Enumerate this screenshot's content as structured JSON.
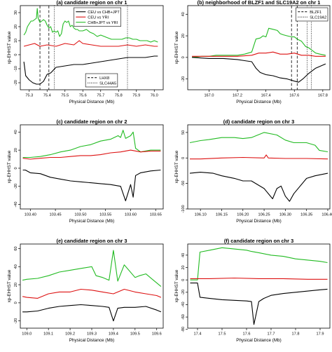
{
  "chart_data": [
    {
      "type": "line",
      "title": "(a) candidate region on chr 1",
      "xlabel": "Physical Distance (Mb)",
      "ylabel": "xp-EHHST value",
      "xlim": [
        75.25,
        76.05
      ],
      "ylim": [
        -25,
        35
      ],
      "xticks": [
        "75.3",
        "75.4",
        "75.5",
        "75.6",
        "75.7",
        "75.8",
        "75.9",
        "76.0"
      ],
      "yticks": [
        "-20",
        "-10",
        "0",
        "10",
        "20",
        "30"
      ],
      "legends": [
        {
          "position": "top-center",
          "entries": [
            {
              "label": "CEU vs CHB+JPT",
              "color": "#000000",
              "dash": "solid"
            },
            {
              "label": "CEU vs YRI",
              "color": "#dd1111",
              "dash": "solid"
            },
            {
              "label": "CHB+JPT vs YRI",
              "color": "#22bb22",
              "dash": "solid"
            }
          ]
        },
        {
          "position": "bottom-center",
          "entries": [
            {
              "label": "LHX8",
              "color": "#000000",
              "dash": "dashed"
            },
            {
              "label": "SLC44A5",
              "color": "#000000",
              "dash": "dotted"
            }
          ]
        }
      ],
      "vlines": [
        {
          "x": 75.36,
          "style": "dashed"
        },
        {
          "x": 75.41,
          "style": "dashed"
        },
        {
          "x": 75.44,
          "style": "dotted"
        },
        {
          "x": 75.85,
          "style": "dotted"
        }
      ],
      "series": [
        {
          "name": "CHB+JPT vs YRI",
          "color": "#22bb22",
          "x": [
            75.27,
            75.28,
            75.29,
            75.3,
            75.31,
            75.32,
            75.33,
            75.34,
            75.345,
            75.35,
            75.36,
            75.37,
            75.38,
            75.39,
            75.4,
            75.41,
            75.42,
            75.43,
            75.44,
            75.45,
            75.46,
            75.47,
            75.48,
            75.49,
            75.5,
            75.51,
            75.52,
            75.53,
            75.54,
            75.55,
            75.56,
            75.57,
            75.58,
            75.6,
            75.62,
            75.64,
            75.66,
            75.68,
            75.7,
            75.72,
            75.74,
            75.76,
            75.78,
            75.8,
            75.82,
            75.84,
            75.86,
            75.88,
            75.9,
            75.92,
            75.94,
            75.96,
            75.98,
            76.0,
            76.02
          ],
          "y": [
            14,
            16,
            20,
            22,
            24,
            24,
            25,
            26,
            33,
            26,
            23,
            24,
            25,
            24,
            21,
            19,
            20,
            16,
            17,
            16,
            17,
            13,
            15,
            22,
            24,
            23,
            24,
            20,
            21,
            19,
            18,
            18,
            17,
            17,
            18,
            16,
            15,
            13,
            14,
            13,
            12,
            11,
            11,
            11,
            11,
            12,
            12,
            11,
            11,
            10,
            10,
            10,
            9,
            10,
            9
          ]
        },
        {
          "name": "CEU vs YRI",
          "color": "#dd1111",
          "x": [
            75.27,
            75.3,
            75.33,
            75.36,
            75.4,
            75.45,
            75.5,
            75.55,
            75.58,
            75.6,
            75.65,
            75.7,
            75.75,
            75.8,
            75.85,
            75.9,
            75.95,
            76.0,
            76.02
          ],
          "y": [
            6,
            7,
            8,
            6,
            7,
            6,
            8,
            7,
            10,
            8,
            7,
            6,
            6,
            6,
            7,
            6,
            7,
            6,
            6
          ]
        },
        {
          "name": "CEU vs CHB+JPT",
          "color": "#000000",
          "x": [
            75.27,
            75.28,
            75.3,
            75.32,
            75.34,
            75.36,
            75.38,
            75.4,
            75.42,
            75.45,
            75.5,
            75.55,
            75.6,
            75.65,
            75.7,
            75.75,
            75.8,
            75.85,
            75.9,
            75.95,
            76.0,
            76.02
          ],
          "y": [
            -5,
            -15,
            -18,
            -20,
            -21,
            -21,
            -19,
            -14,
            -13,
            -9,
            -8,
            -7,
            -7,
            -6,
            -5,
            -4,
            -3,
            -2,
            -2,
            -2,
            -1,
            -1
          ]
        }
      ]
    },
    {
      "type": "line",
      "title": "(b) neighborhood of BLZF1 and SLC19A2 on chr 1",
      "xlabel": "Physical Distance (Mb)",
      "ylabel": "xp-EHHST value",
      "xlim": [
        166.85,
        167.85
      ],
      "ylim": [
        -30,
        48
      ],
      "xticks": [
        "167.0",
        "167.2",
        "167.4",
        "167.6",
        "167.8"
      ],
      "yticks": [
        "-20",
        "0",
        "20",
        "40"
      ],
      "legends": [
        {
          "position": "top-right",
          "entries": [
            {
              "label": "BLZF1",
              "color": "#000000",
              "dash": "dashed"
            },
            {
              "label": "SLC19A2",
              "color": "#000000",
              "dash": "dotted"
            }
          ]
        }
      ],
      "vlines": [
        {
          "x": 167.58,
          "style": "dashed"
        },
        {
          "x": 167.62,
          "style": "dashed"
        },
        {
          "x": 167.69,
          "style": "dotted"
        },
        {
          "x": 167.72,
          "style": "dotted"
        }
      ],
      "series": [
        {
          "name": "CHB+JPT vs YRI",
          "color": "#22bb22",
          "x": [
            166.88,
            166.95,
            167.0,
            167.05,
            167.1,
            167.15,
            167.2,
            167.25,
            167.3,
            167.33,
            167.36,
            167.38,
            167.4,
            167.42,
            167.45,
            167.48,
            167.5,
            167.52,
            167.55,
            167.58,
            167.6,
            167.62,
            167.65,
            167.68,
            167.7,
            167.72,
            167.75,
            167.78,
            167.82
          ],
          "y": [
            0,
            1,
            1,
            2,
            2,
            2,
            2,
            3,
            5,
            17,
            18,
            20,
            19,
            27,
            26,
            25,
            22,
            21,
            20,
            19,
            19,
            17,
            15,
            10,
            9,
            7,
            4,
            3,
            2
          ]
        },
        {
          "name": "CEU vs YRI",
          "color": "#dd1111",
          "x": [
            166.88,
            167.0,
            167.1,
            167.2,
            167.3,
            167.35,
            167.4,
            167.45,
            167.5,
            167.55,
            167.6,
            167.65,
            167.7,
            167.75,
            167.82
          ],
          "y": [
            1,
            1,
            1,
            1,
            2,
            4,
            4,
            5,
            3,
            3,
            4,
            2,
            2,
            1,
            1
          ]
        },
        {
          "name": "CEU vs CHB+JPT",
          "color": "#000000",
          "x": [
            166.88,
            167.0,
            167.1,
            167.2,
            167.25,
            167.3,
            167.33,
            167.36,
            167.4,
            167.45,
            167.5,
            167.55,
            167.6,
            167.63,
            167.66,
            167.7,
            167.75,
            167.82
          ],
          "y": [
            0,
            -1,
            -1,
            -2,
            -3,
            -4,
            -10,
            -14,
            -16,
            -17,
            -19,
            -20,
            -22,
            -23,
            -20,
            -15,
            -10,
            -6
          ]
        }
      ]
    },
    {
      "type": "line",
      "title": "(c) candidate region on chr 2",
      "xlabel": "Physical Distance (Mb)",
      "ylabel": "xp-EHHST value",
      "xlim": [
        103.38,
        103.665
      ],
      "ylim": [
        -45,
        48
      ],
      "xticks": [
        "103.40",
        "103.45",
        "103.50",
        "103.55",
        "103.60",
        "103.65"
      ],
      "yticks": [
        "-40",
        "-20",
        "0",
        "20",
        "40"
      ],
      "series": [
        {
          "name": "CHB+JPT vs YRI",
          "color": "#22bb22",
          "x": [
            103.385,
            103.4,
            103.42,
            103.44,
            103.46,
            103.48,
            103.5,
            103.52,
            103.54,
            103.56,
            103.575,
            103.58,
            103.585,
            103.59,
            103.6,
            103.605,
            103.61,
            103.62,
            103.64,
            103.66
          ],
          "y": [
            12,
            12,
            13,
            15,
            18,
            20,
            24,
            26,
            30,
            32,
            36,
            34,
            42,
            33,
            36,
            40,
            22,
            18,
            20,
            20
          ]
        },
        {
          "name": "CEU vs YRI",
          "color": "#dd1111",
          "x": [
            103.385,
            103.4,
            103.42,
            103.44,
            103.46,
            103.48,
            103.5,
            103.52,
            103.54,
            103.56,
            103.58,
            103.6,
            103.62,
            103.64,
            103.66
          ],
          "y": [
            11,
            10,
            11,
            12,
            12,
            13,
            14,
            14,
            15,
            17,
            18,
            20,
            18,
            19,
            19
          ]
        },
        {
          "name": "CEU vs CHB+JPT",
          "color": "#000000",
          "x": [
            103.385,
            103.39,
            103.4,
            103.42,
            103.44,
            103.46,
            103.48,
            103.5,
            103.52,
            103.54,
            103.56,
            103.58,
            103.59,
            103.6,
            103.605,
            103.61,
            103.62,
            103.64,
            103.66
          ],
          "y": [
            -2,
            -2,
            -5,
            -6,
            -10,
            -12,
            -14,
            -15,
            -16,
            -17,
            -18,
            -20,
            -36,
            -18,
            -32,
            -8,
            -5,
            -3,
            -2
          ]
        }
      ]
    },
    {
      "type": "line",
      "title": "(d) candidate region on chr 3",
      "xlabel": "Physical Distance (Mb)",
      "ylabel": "xp-EHHST value",
      "xlim": [
        106.07,
        106.405
      ],
      "ylim": [
        -100,
        65
      ],
      "xticks": [
        "106.10",
        "106.15",
        "106.20",
        "106.25",
        "106.30",
        "106.35",
        "106.40"
      ],
      "yticks": [
        "-100",
        "-50",
        "0",
        "50"
      ],
      "series": [
        {
          "name": "CHB+JPT vs YRI",
          "color": "#22bb22",
          "x": [
            106.075,
            106.1,
            106.12,
            106.15,
            106.18,
            106.2,
            106.22,
            106.25,
            106.28,
            106.3,
            106.32,
            106.35,
            106.37,
            106.38,
            106.4
          ],
          "y": [
            30,
            34,
            36,
            40,
            40,
            38,
            40,
            50,
            45,
            35,
            30,
            30,
            25,
            15,
            12
          ]
        },
        {
          "name": "CEU vs YRI",
          "color": "#dd1111",
          "x": [
            106.075,
            106.1,
            106.15,
            106.2,
            106.25,
            106.255,
            106.26,
            106.3,
            106.35,
            106.4
          ],
          "y": [
            -2,
            -2,
            0,
            1,
            0,
            6,
            0,
            -1,
            -1,
            -2
          ]
        },
        {
          "name": "CEU vs CHB+JPT",
          "color": "#000000",
          "x": [
            106.075,
            106.1,
            106.13,
            106.15,
            106.18,
            106.2,
            106.22,
            106.25,
            106.27,
            106.28,
            106.29,
            106.3,
            106.31,
            106.32,
            106.35,
            106.37,
            106.4
          ],
          "y": [
            -30,
            -28,
            -30,
            -35,
            -40,
            -45,
            -45,
            -60,
            -80,
            -60,
            -55,
            -75,
            -85,
            -70,
            -40,
            -35,
            -30
          ]
        }
      ]
    },
    {
      "type": "line",
      "title": "(e) candidate region on chr 3",
      "xlabel": "Physical Distance (Mb)",
      "ylabel": "xp-EHHST value",
      "xlim": [
        108.97,
        109.63
      ],
      "ylim": [
        -28,
        65
      ],
      "xticks": [
        "109.0",
        "109.1",
        "109.2",
        "109.3",
        "109.4",
        "109.5",
        "109.6"
      ],
      "yticks": [
        "-20",
        "0",
        "20",
        "40",
        "60"
      ],
      "series": [
        {
          "name": "CHB+JPT vs YRI",
          "color": "#22bb22",
          "x": [
            108.98,
            109.0,
            109.05,
            109.1,
            109.15,
            109.2,
            109.25,
            109.3,
            109.32,
            109.35,
            109.38,
            109.4,
            109.42,
            109.45,
            109.5,
            109.52,
            109.55,
            109.58,
            109.62
          ],
          "y": [
            25,
            26,
            27,
            30,
            34,
            36,
            38,
            40,
            30,
            28,
            25,
            58,
            24,
            42,
            28,
            30,
            32,
            26,
            18
          ]
        },
        {
          "name": "CEU vs YRI",
          "color": "#dd1111",
          "x": [
            108.98,
            109.0,
            109.05,
            109.1,
            109.15,
            109.2,
            109.25,
            109.3,
            109.35,
            109.4,
            109.45,
            109.5,
            109.55,
            109.6,
            109.62
          ],
          "y": [
            7,
            6,
            5,
            10,
            12,
            12,
            15,
            14,
            12,
            10,
            15,
            12,
            10,
            8,
            6
          ]
        },
        {
          "name": "CEU vs CHB+JPT",
          "color": "#000000",
          "x": [
            108.98,
            109.0,
            109.05,
            109.1,
            109.15,
            109.2,
            109.25,
            109.3,
            109.35,
            109.38,
            109.4,
            109.42,
            109.45,
            109.5,
            109.55,
            109.6,
            109.62
          ],
          "y": [
            -10,
            -10,
            -9,
            -6,
            -4,
            -3,
            -2,
            -3,
            -4,
            -5,
            -20,
            -6,
            -5,
            -5,
            -4,
            -8,
            -10
          ]
        }
      ]
    },
    {
      "type": "line",
      "title": "(f) candidate region on chr 3",
      "xlabel": "Physical Distance (Mb)",
      "ylabel": "xp-EHHST value",
      "xlim": [
        17.36,
        17.94
      ],
      "ylim": [
        -78,
        58
      ],
      "xticks": [
        "17.4",
        "17.5",
        "17.6",
        "17.7",
        "17.8",
        "17.9"
      ],
      "yticks": [
        "-80",
        "-60",
        "-40",
        "-20",
        "0",
        "20",
        "40"
      ],
      "series": [
        {
          "name": "CHB+JPT vs YRI",
          "color": "#22bb22",
          "x": [
            17.37,
            17.4,
            17.41,
            17.45,
            17.5,
            17.55,
            17.6,
            17.62,
            17.65,
            17.7,
            17.75,
            17.8,
            17.85,
            17.9,
            17.93
          ],
          "y": [
            0,
            0,
            45,
            48,
            52,
            50,
            48,
            46,
            44,
            40,
            38,
            34,
            32,
            30,
            28
          ]
        },
        {
          "name": "CEU vs YRI",
          "color": "#dd1111",
          "x": [
            17.37,
            17.45,
            17.55,
            17.65,
            17.75,
            17.85,
            17.93
          ],
          "y": [
            2,
            2,
            3,
            2,
            2,
            1,
            1
          ]
        },
        {
          "name": "CEU vs CHB+JPT",
          "color": "#000000",
          "x": [
            17.37,
            17.4,
            17.41,
            17.45,
            17.5,
            17.55,
            17.6,
            17.62,
            17.63,
            17.65,
            17.67,
            17.7,
            17.75,
            17.8,
            17.85,
            17.9,
            17.93
          ],
          "y": [
            -5,
            -5,
            -28,
            -30,
            -32,
            -33,
            -34,
            -35,
            -72,
            -35,
            -30,
            -25,
            -22,
            -20,
            -18,
            -16,
            -15
          ]
        }
      ]
    }
  ]
}
